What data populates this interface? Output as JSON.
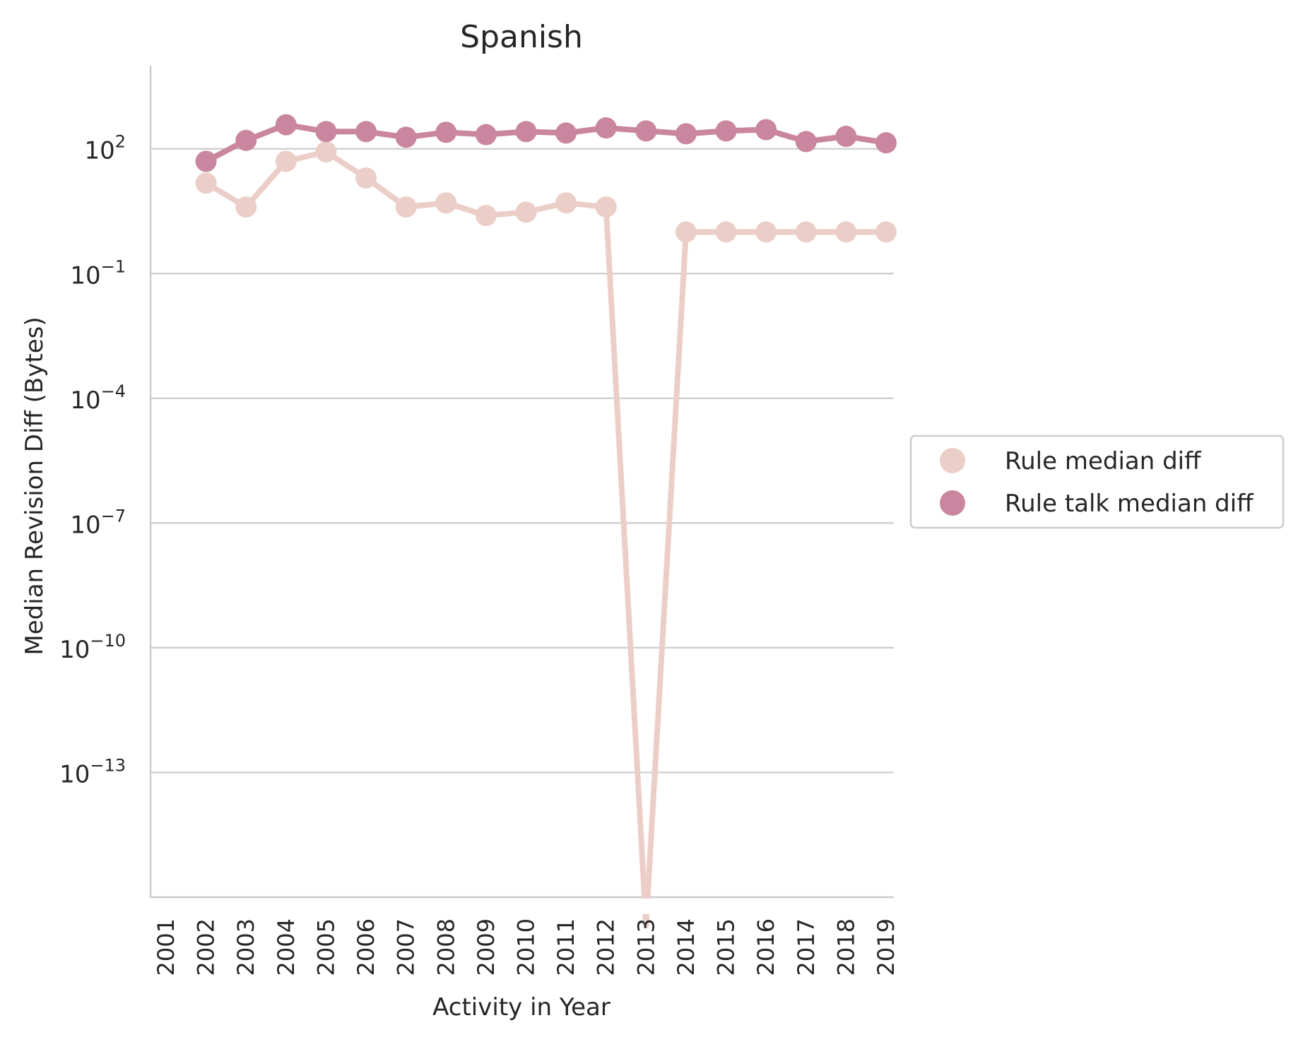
{
  "chart_data": {
    "type": "line",
    "title": "Spanish",
    "xlabel": "Activity in Year",
    "ylabel": "Median Revision Diff (Bytes)",
    "yscale": "log",
    "ylim": [
      1e-16,
      10000.0
    ],
    "grid": "y",
    "legend_position": "right",
    "x_tick_labels": [
      "2001",
      "2002",
      "2003",
      "2004",
      "2005",
      "2006",
      "2007",
      "2008",
      "2009",
      "2010",
      "2011",
      "2012",
      "2013",
      "2014",
      "2015",
      "2016",
      "2017",
      "2018",
      "2019"
    ],
    "y_ticks": [
      {
        "value": 100,
        "base": "10",
        "exp": "2"
      },
      {
        "value": 0.1,
        "base": "10",
        "exp": "−1"
      },
      {
        "value": 0.0001,
        "base": "10",
        "exp": "−4"
      },
      {
        "value": 1e-07,
        "base": "10",
        "exp": "−7"
      },
      {
        "value": 1e-10,
        "base": "10",
        "exp": "−10"
      },
      {
        "value": 1e-13,
        "base": "10",
        "exp": "−13"
      }
    ],
    "series": [
      {
        "name": "Rule median diff",
        "color": "#eccec8",
        "x": [
          "2002",
          "2003",
          "2004",
          "2005",
          "2006",
          "2007",
          "2008",
          "2009",
          "2010",
          "2011",
          "2012",
          "2013",
          "2014",
          "2015",
          "2016",
          "2017",
          "2018",
          "2019"
        ],
        "values": [
          15,
          4,
          50,
          85,
          20,
          4,
          5,
          2.5,
          3,
          5,
          4,
          0,
          1,
          1,
          1,
          1,
          1,
          1
        ]
      },
      {
        "name": "Rule talk median diff",
        "color": "#c9869e",
        "x": [
          "2002",
          "2003",
          "2004",
          "2005",
          "2006",
          "2007",
          "2008",
          "2009",
          "2010",
          "2011",
          "2012",
          "2013",
          "2014",
          "2015",
          "2016",
          "2017",
          "2018",
          "2019"
        ],
        "values": [
          50,
          160,
          380,
          260,
          260,
          190,
          250,
          220,
          260,
          240,
          320,
          270,
          230,
          270,
          290,
          150,
          200,
          140
        ]
      }
    ]
  }
}
